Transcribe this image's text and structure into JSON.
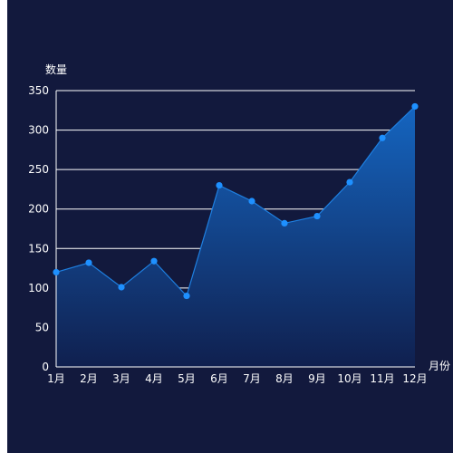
{
  "chart_data": {
    "type": "area",
    "title": "",
    "ylabel": "数量",
    "xlabel": "月份",
    "categories": [
      "1月",
      "2月",
      "3月",
      "4月",
      "5月",
      "6月",
      "7月",
      "8月",
      "9月",
      "10月",
      "11月",
      "12月"
    ],
    "series": [
      {
        "values": [
          120,
          132,
          101,
          134,
          90,
          230,
          210,
          182,
          191,
          234,
          290,
          330
        ]
      }
    ],
    "ylim": [
      0,
      350
    ],
    "yticks": [
      0,
      50,
      100,
      150,
      200,
      250,
      300,
      350
    ],
    "grid": true,
    "legend": "none"
  },
  "colors": {
    "background": "#12193d",
    "line": "#1e7fe0",
    "point": "#1e90ff",
    "area_top": "#1565c0",
    "area_bottom": "#10204f",
    "grid": "#ffffff",
    "text": "#ffffff"
  }
}
